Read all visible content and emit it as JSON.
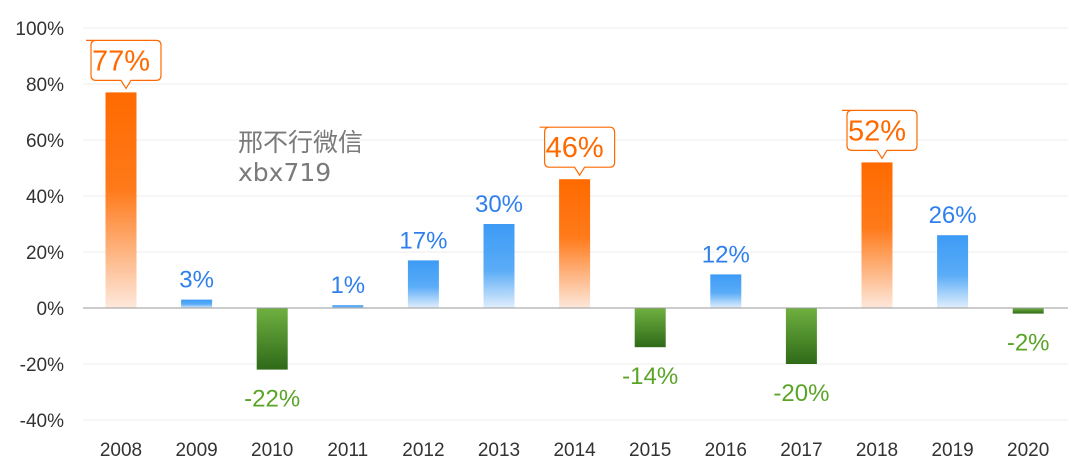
{
  "watermark": {
    "line1": "邢不行微信",
    "line2": "xbx719"
  },
  "colors": {
    "highlight": "#ff6a00",
    "positive": "#3d9bf5",
    "negative": "#3a7a1e",
    "negative_label": "#5aa428",
    "positive_label": "#2f80ed",
    "axis_text": "#333333"
  },
  "chart_data": {
    "type": "bar",
    "categories": [
      "2008",
      "2009",
      "2010",
      "2011",
      "2012",
      "2013",
      "2014",
      "2015",
      "2016",
      "2017",
      "2018",
      "2019",
      "2020"
    ],
    "values": [
      77,
      3,
      -22,
      1,
      17,
      30,
      46,
      -14,
      12,
      -20,
      52,
      26,
      -2
    ],
    "value_labels": [
      "77%",
      "3%",
      "-22%",
      "1%",
      "17%",
      "30%",
      "46%",
      "-14%",
      "12%",
      "-20%",
      "52%",
      "26%",
      "-2%"
    ],
    "highlighted": [
      true,
      false,
      false,
      false,
      false,
      false,
      true,
      false,
      false,
      false,
      true,
      false,
      false
    ],
    "yticks": [
      "100%",
      "80%",
      "60%",
      "40%",
      "20%",
      "0%",
      "-20%",
      "-40%"
    ],
    "ytick_values": [
      100,
      80,
      60,
      40,
      20,
      0,
      -20,
      -40
    ],
    "ylim": [
      -40,
      100
    ],
    "grid": true,
    "legend": "none"
  }
}
